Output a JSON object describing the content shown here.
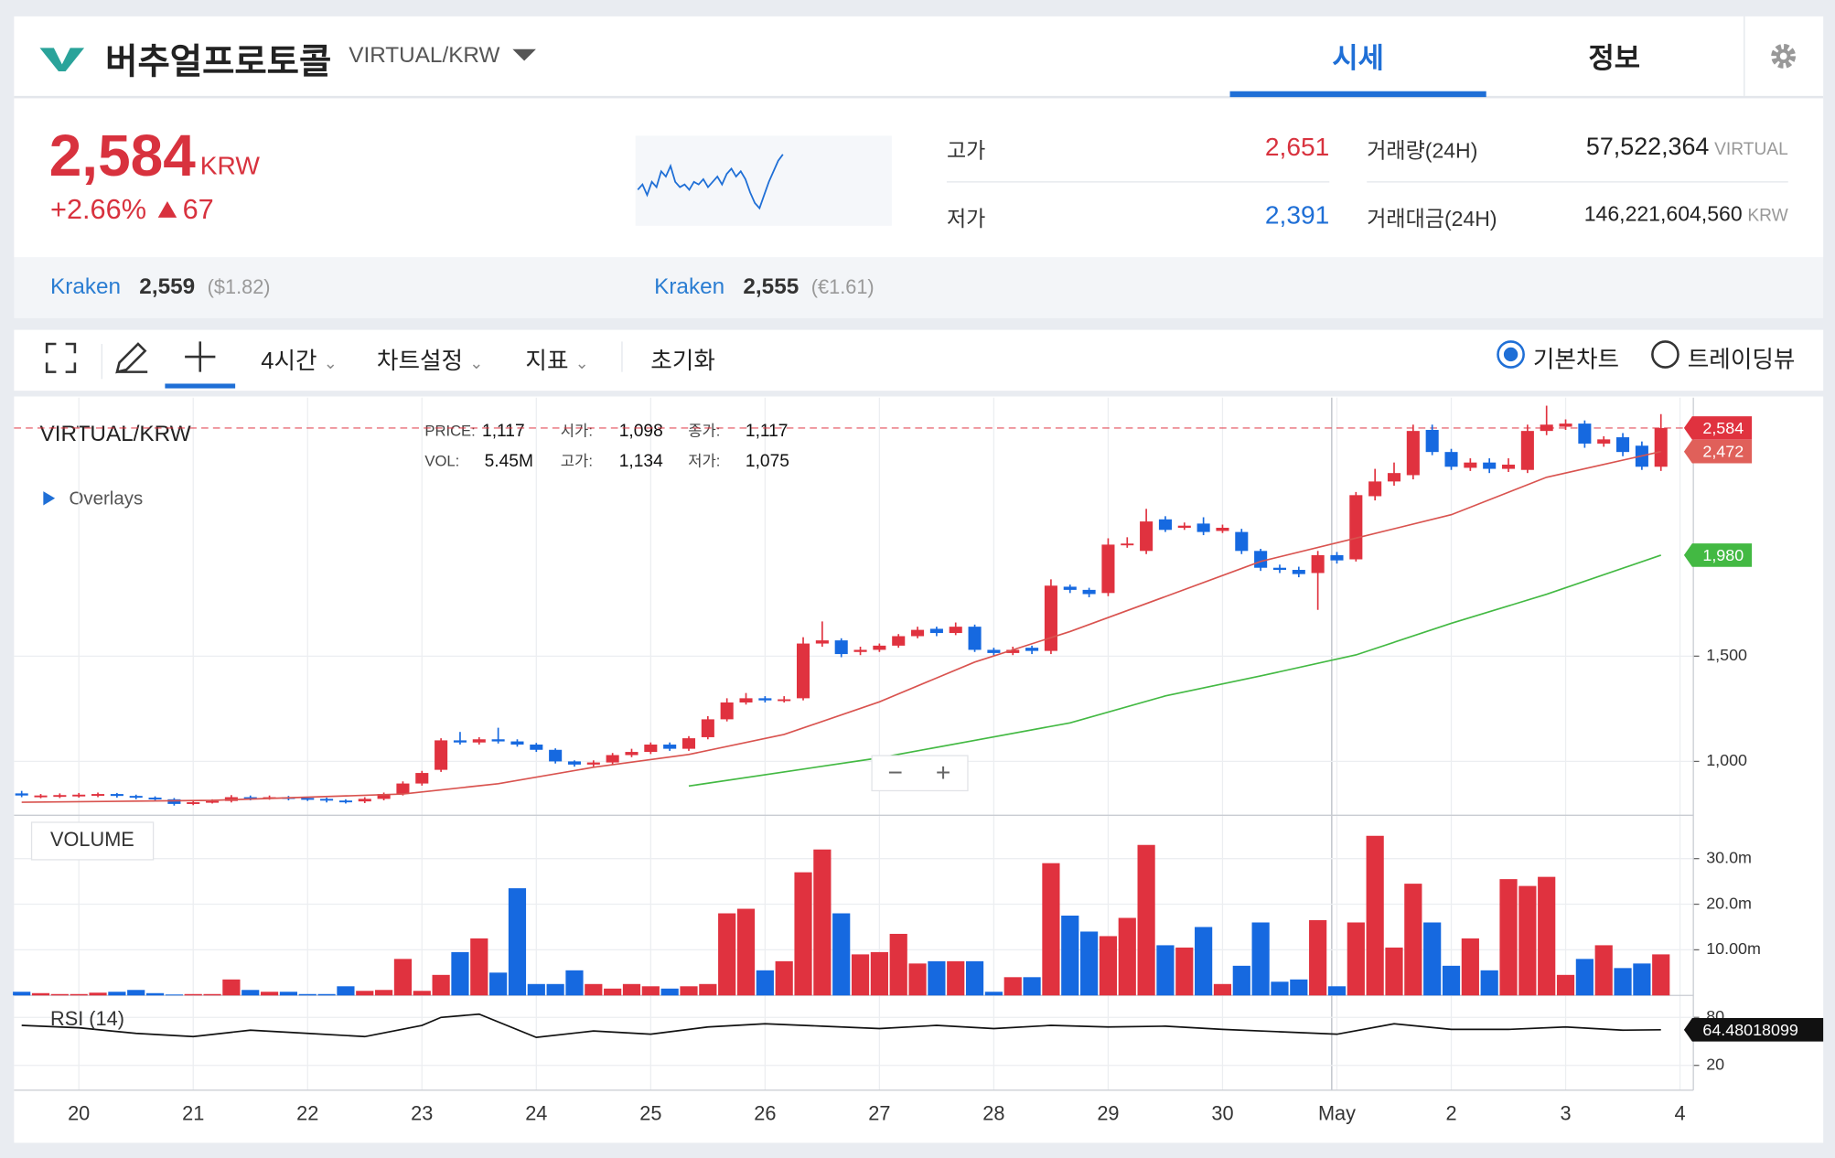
{
  "header": {
    "title": "버추얼프로토콜",
    "pair": "VIRTUAL/KRW",
    "tabs": [
      "시세",
      "정보"
    ]
  },
  "price": {
    "last": "2,584",
    "unit": "KRW",
    "change_pct": "+2.66%",
    "change": "67"
  },
  "stats": {
    "high_label": "고가",
    "high": "2,651",
    "low_label": "저가",
    "low": "2,391",
    "volume_label": "거래량(24H)",
    "volume": "57,522,364",
    "volume_unit": "VIRTUAL",
    "value_label": "거래대금(24H)",
    "value": "146,221,604,560",
    "value_unit": "KRW"
  },
  "exchanges": [
    {
      "name": "Kraken",
      "price": "2,559",
      "converted": "($1.82)"
    },
    {
      "name": "Kraken",
      "price": "2,555",
      "converted": "(€1.61)"
    }
  ],
  "toolbar": {
    "interval": "4시간",
    "settings": "차트설정",
    "indicators": "지표",
    "reset": "초기화",
    "views": [
      "기본차트",
      "트레이딩뷰"
    ]
  },
  "sparkline": [
    2450,
    2470,
    2430,
    2480,
    2460,
    2520,
    2500,
    2540,
    2480,
    2460,
    2470,
    2450,
    2480,
    2470,
    2490,
    2460,
    2480,
    2500,
    2470,
    2510,
    2530,
    2500,
    2520,
    2490,
    2440,
    2400,
    2380,
    2430,
    2480,
    2520,
    2560,
    2584
  ],
  "chart_data": {
    "type": "candlestick",
    "title": "VIRTUAL/KRW",
    "info": [
      {
        "label": "PRICE:",
        "value": "1,117"
      },
      {
        "label": "시가:",
        "value": "1,098"
      },
      {
        "label": "종가:",
        "value": "1,117"
      },
      {
        "label": "VOL:",
        "value": "5.45M"
      },
      {
        "label": "고가:",
        "value": "1,134"
      },
      {
        "label": "저가:",
        "value": "1,075"
      }
    ],
    "overlays": "Overlays",
    "up_color": "#e0323f",
    "down_color": "#1669e0",
    "open": [
      848,
      832,
      834,
      836,
      838,
      845,
      836,
      828,
      820,
      798,
      806,
      812,
      830,
      826,
      830,
      826,
      822,
      814,
      810,
      822,
      845,
      895,
      960,
      1100,
      1090,
      1105,
      1095,
      1080,
      1055,
      1000,
      985,
      995,
      1030,
      1045,
      1080,
      1060,
      1115,
      1200,
      1280,
      1300,
      1290,
      1300,
      1560,
      1575,
      1520,
      1530,
      1550,
      1595,
      1630,
      1610,
      1640,
      1530,
      1515,
      1540,
      1525,
      1830,
      1815,
      1800,
      2030,
      2000,
      2150,
      2110,
      2130,
      2095,
      2090,
      2000,
      1920,
      1910,
      1895,
      1980,
      1960,
      2260,
      2330,
      2360,
      2575,
      2470,
      2395,
      2420,
      2390,
      2385,
      2570,
      2590,
      2605,
      2510,
      2540,
      2500,
      2400
    ],
    "high": [
      860,
      845,
      848,
      850,
      852,
      850,
      842,
      834,
      826,
      815,
      820,
      840,
      838,
      838,
      836,
      832,
      828,
      820,
      830,
      852,
      905,
      955,
      1110,
      1140,
      1115,
      1160,
      1105,
      1088,
      1062,
      1005,
      1005,
      1040,
      1060,
      1090,
      1090,
      1120,
      1215,
      1300,
      1325,
      1310,
      1310,
      1590,
      1665,
      1585,
      1545,
      1560,
      1605,
      1640,
      1640,
      1660,
      1650,
      1540,
      1545,
      1550,
      1865,
      1840,
      1825,
      2060,
      2065,
      2200,
      2165,
      2135,
      2160,
      2125,
      2105,
      2010,
      1935,
      1925,
      2000,
      1995,
      2280,
      2390,
      2420,
      2600,
      2600,
      2485,
      2440,
      2440,
      2440,
      2600,
      2690,
      2625,
      2620,
      2545,
      2560,
      2520,
      2650
    ],
    "low": [
      830,
      825,
      826,
      828,
      830,
      828,
      820,
      812,
      790,
      792,
      800,
      805,
      815,
      818,
      815,
      812,
      805,
      800,
      802,
      815,
      838,
      885,
      950,
      1080,
      1080,
      1085,
      1070,
      1045,
      990,
      975,
      975,
      985,
      1020,
      1035,
      1050,
      1050,
      1105,
      1190,
      1270,
      1280,
      1280,
      1290,
      1545,
      1495,
      1505,
      1520,
      1540,
      1585,
      1595,
      1600,
      1520,
      1500,
      1505,
      1510,
      1510,
      1800,
      1780,
      1785,
      2015,
      1985,
      2090,
      2100,
      2075,
      2085,
      1985,
      1905,
      1895,
      1875,
      1720,
      1940,
      1950,
      2240,
      2310,
      2340,
      2455,
      2385,
      2380,
      2370,
      2375,
      2370,
      2550,
      2575,
      2490,
      2495,
      2450,
      2385,
      2380
    ],
    "close": [
      838,
      838,
      840,
      842,
      845,
      836,
      828,
      820,
      798,
      806,
      812,
      830,
      826,
      830,
      826,
      822,
      814,
      810,
      822,
      845,
      895,
      945,
      1100,
      1090,
      1105,
      1095,
      1080,
      1055,
      1000,
      985,
      995,
      1030,
      1045,
      1080,
      1060,
      1110,
      1200,
      1280,
      1300,
      1290,
      1295,
      1560,
      1575,
      1510,
      1530,
      1550,
      1595,
      1625,
      1610,
      1640,
      1530,
      1515,
      1530,
      1525,
      1835,
      1815,
      1795,
      2030,
      2035,
      2140,
      2100,
      2120,
      2090,
      2110,
      2000,
      1920,
      1910,
      1890,
      1980,
      1955,
      2265,
      2330,
      2370,
      2570,
      2470,
      2400,
      2420,
      2390,
      2410,
      2570,
      2600,
      2605,
      2510,
      2530,
      2470,
      2400,
      2584
    ],
    "xlim": [
      -0.4,
      87.7
    ],
    "xticks": [
      {
        "value": 3,
        "label": "20"
      },
      {
        "value": 9,
        "label": "21"
      },
      {
        "value": 15,
        "label": "22"
      },
      {
        "value": 21,
        "label": "23"
      },
      {
        "value": 27,
        "label": "24"
      },
      {
        "value": 33,
        "label": "25"
      },
      {
        "value": 39,
        "label": "26"
      },
      {
        "value": 45,
        "label": "27"
      },
      {
        "value": 51,
        "label": "28"
      },
      {
        "value": 57,
        "label": "29"
      },
      {
        "value": 63,
        "label": "30"
      },
      {
        "value": 69,
        "label": "May"
      },
      {
        "value": 75,
        "label": "2"
      },
      {
        "value": 81,
        "label": "3"
      },
      {
        "value": 87,
        "label": "4"
      }
    ],
    "ylim": [
      744,
      2728
    ],
    "yticks": [
      {
        "value": 1000,
        "label": "1,000"
      },
      {
        "value": 1500,
        "label": "1,500"
      }
    ],
    "grid": true,
    "overlay_series": [
      {
        "color": "#d9534f",
        "x": [
          0,
          10,
          20,
          25,
          30,
          35,
          40,
          45,
          50,
          55,
          60,
          65,
          70,
          75,
          80,
          86
        ],
        "values": [
          806,
          815,
          845,
          894,
          972,
          1033,
          1128,
          1283,
          1472,
          1617,
          1783,
          1950,
          2061,
          2172,
          2350,
          2472
        ]
      },
      {
        "color": "#43b943",
        "x": [
          35,
          40,
          45,
          50,
          55,
          60,
          65,
          70,
          75,
          80,
          86
        ],
        "values": [
          883,
          950,
          1017,
          1100,
          1183,
          1311,
          1406,
          1506,
          1656,
          1794,
          1980
        ]
      }
    ],
    "markers": [
      {
        "value": 2584,
        "label": "2,584",
        "color": "#e0323f"
      },
      {
        "value": 2472,
        "label": "2,472",
        "color": "#e0605a"
      },
      {
        "value": 1980,
        "label": "1,980",
        "color": "#43b943"
      }
    ],
    "volume": {
      "title": "VOLUME",
      "values": [
        0.8,
        0.5,
        0.3,
        0.3,
        0.6,
        0.8,
        1.2,
        0.5,
        0.2,
        0.3,
        0.3,
        3.5,
        1.2,
        0.8,
        0.8,
        0.3,
        0.3,
        2,
        1,
        1.2,
        8,
        1,
        4.5,
        9.5,
        12.5,
        5,
        23.5,
        2.5,
        2.5,
        5.5,
        2.5,
        1.5,
        2.5,
        2,
        1.5,
        2,
        2.5,
        18,
        19,
        5.5,
        7.5,
        27,
        32,
        18,
        9,
        9.5,
        13.5,
        7,
        7.5,
        7.5,
        7.5,
        0.8,
        4,
        4,
        29,
        17.5,
        14,
        13,
        17,
        33,
        11,
        10.5,
        15,
        2.5,
        6.5,
        16,
        3,
        3.5,
        16.5,
        2,
        16,
        35,
        10.5,
        24.5,
        16,
        6.5,
        12.5,
        5.5,
        25.5,
        24,
        26,
        4.5,
        8,
        11,
        6,
        7,
        9
      ],
      "ylim": [
        0,
        39.5
      ],
      "yticks": [
        {
          "value": 10,
          "label": "10.00m"
        },
        {
          "value": 20,
          "label": "20.0m"
        },
        {
          "value": 30,
          "label": "30.0m"
        }
      ]
    },
    "rsi": {
      "title": "RSI (14)",
      "color": "#111111",
      "x": [
        0,
        3,
        6,
        9,
        12,
        15,
        18,
        21,
        22,
        24,
        27,
        30,
        33,
        36,
        39,
        42,
        45,
        48,
        51,
        54,
        57,
        60,
        63,
        66,
        69,
        72,
        75,
        78,
        81,
        84,
        86
      ],
      "values": [
        70,
        67,
        60,
        56,
        64,
        60,
        56,
        70,
        80,
        84,
        55,
        63,
        59,
        68,
        72,
        69,
        66,
        70,
        66,
        70,
        68,
        69,
        65,
        62,
        59,
        72,
        65,
        65,
        68,
        64,
        64.48018099
      ],
      "ylim": [
        -11,
        106
      ],
      "yticks": [
        20,
        80
      ]
    }
  }
}
